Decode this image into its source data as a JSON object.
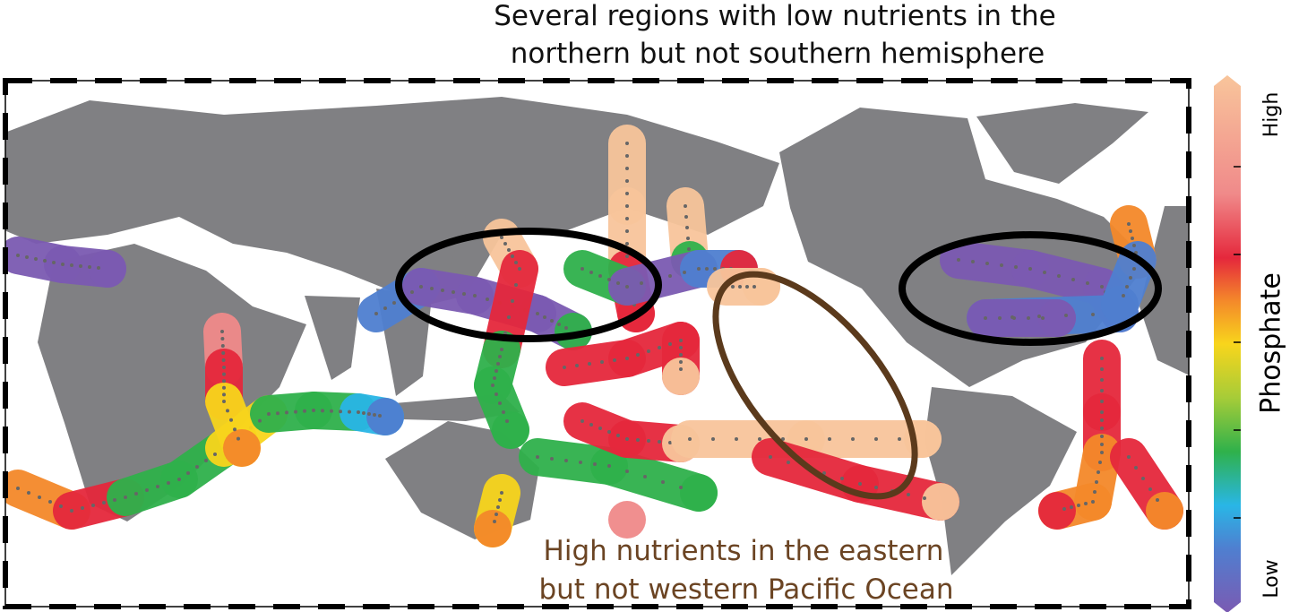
{
  "annotations": [
    {
      "lines": [
        "Several regions with low nutrients in the",
        "northern but not southern hemisphere"
      ]
    },
    {
      "lines": [
        "High nutrients in the eastern",
        "but not western Pacific Ocean"
      ]
    }
  ],
  "colorbar": {
    "label": "Phosphate",
    "high": "High",
    "low": "Low"
  }
}
